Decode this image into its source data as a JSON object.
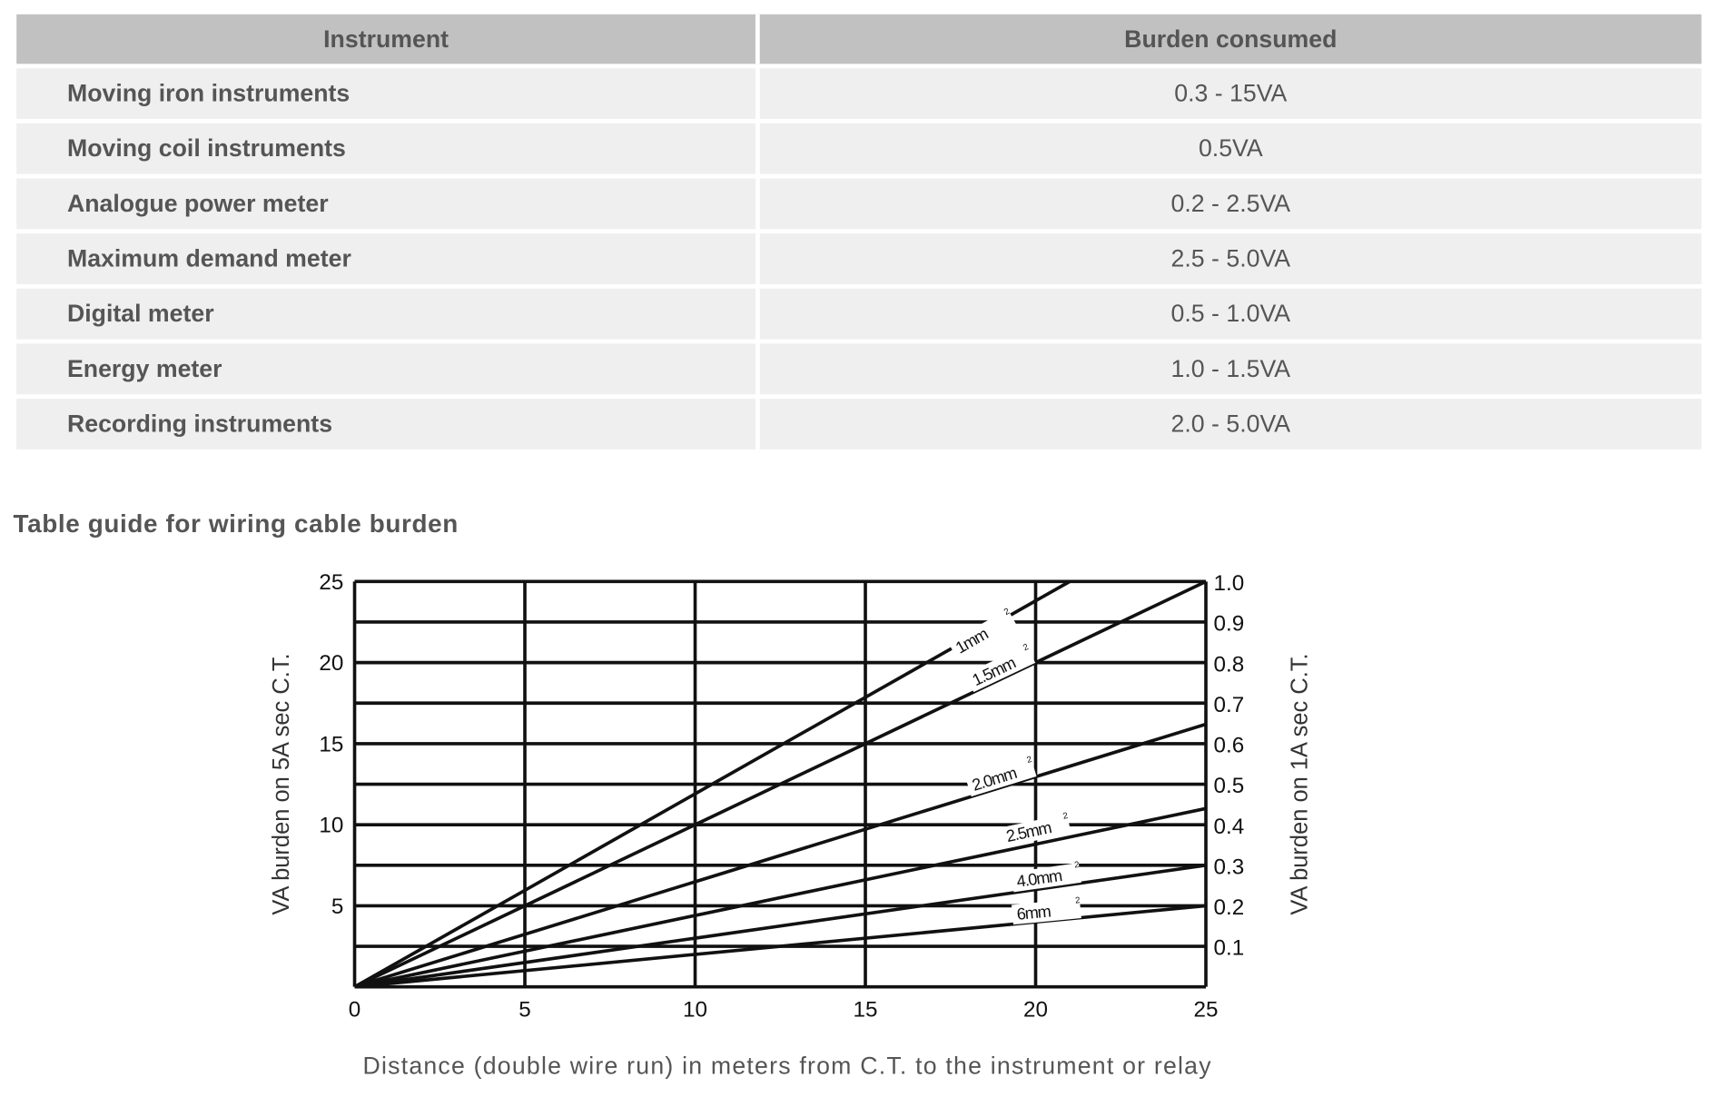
{
  "table": {
    "headers": [
      "Instrument",
      "Burden consumed"
    ],
    "rows": [
      {
        "instrument": "Moving iron instruments",
        "burden": "0.3 - 15VA"
      },
      {
        "instrument": "Moving coil instruments",
        "burden": "0.5VA"
      },
      {
        "instrument": "Analogue power meter",
        "burden": "0.2 - 2.5VA"
      },
      {
        "instrument": "Maximum demand meter",
        "burden": "2.5 - 5.0VA"
      },
      {
        "instrument": "Digital meter",
        "burden": "0.5 - 1.0VA"
      },
      {
        "instrument": "Energy meter",
        "burden": "1.0 - 1.5VA"
      },
      {
        "instrument": "Recording instruments",
        "burden": "2.0 - 5.0VA"
      }
    ]
  },
  "section_title": "Table guide for wiring cable burden",
  "chart_data": {
    "type": "line",
    "title": "",
    "xlabel": "Distance (double wire run) in meters from C.T. to the instrument or relay",
    "ylabel": "VA burden on 5A sec C.T.",
    "ylabel_right": "VA burden on 1A sec C.T.",
    "xlim": [
      0,
      25
    ],
    "ylim": [
      0,
      25
    ],
    "ylim_right": [
      0,
      1.0
    ],
    "x_ticks": [
      "0",
      "5",
      "10",
      "15",
      "20",
      "25"
    ],
    "y_ticks": [
      "5",
      "10",
      "15",
      "20",
      "25"
    ],
    "y_ticks_right": [
      "0.1",
      "0.2",
      "0.3",
      "0.4",
      "0.5",
      "0.6",
      "0.7",
      "0.8",
      "0.9",
      "1.0"
    ],
    "grid": true,
    "series": [
      {
        "name": "1mm",
        "x": [
          0,
          21
        ],
        "y": [
          0,
          25
        ]
      },
      {
        "name": "1.5mm",
        "x": [
          0,
          25
        ],
        "y": [
          0,
          25
        ]
      },
      {
        "name": "2.0mm",
        "x": [
          0,
          25
        ],
        "y": [
          0,
          16.2
        ]
      },
      {
        "name": "2.5mm",
        "x": [
          0,
          25
        ],
        "y": [
          0,
          11
        ]
      },
      {
        "name": "4.0mm",
        "x": [
          0,
          25
        ],
        "y": [
          0,
          7.5
        ]
      },
      {
        "name": "6mm",
        "x": [
          0,
          25
        ],
        "y": [
          0,
          5
        ]
      }
    ],
    "series_label_superscript": "2"
  }
}
